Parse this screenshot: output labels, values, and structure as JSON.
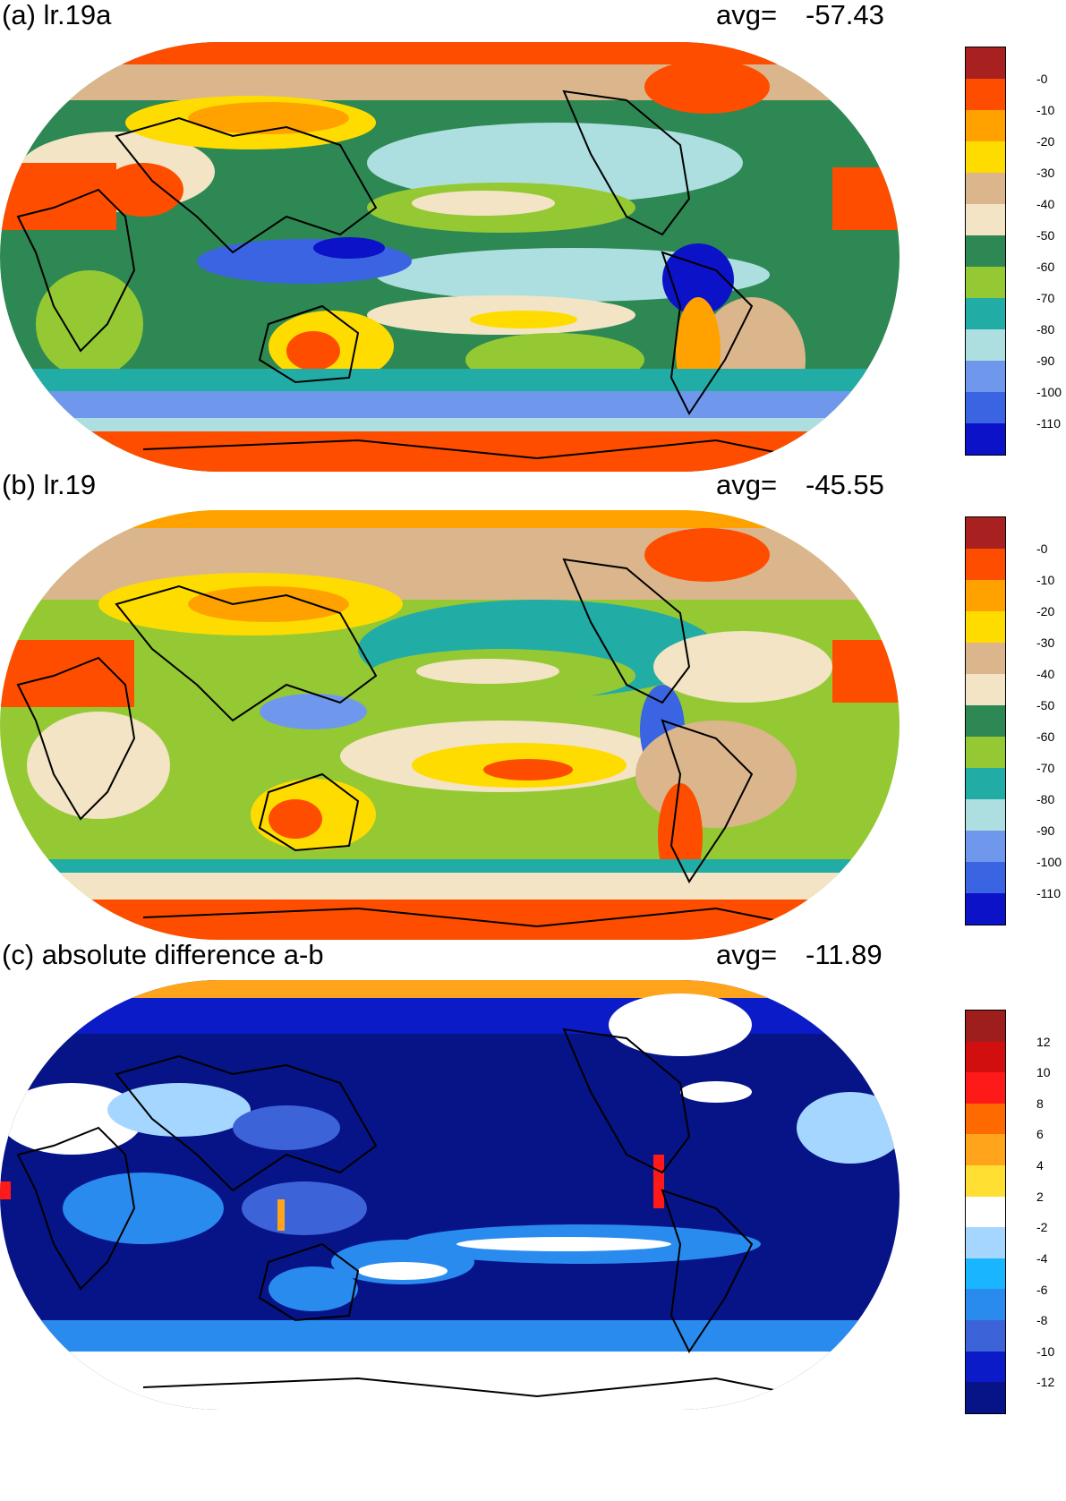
{
  "panels": [
    {
      "label": "(a) lr.19a",
      "avg_label": "avg=",
      "avg_value": "-57.43",
      "colorbar": {
        "colors": [
          "#a8201f",
          "#ff4d00",
          "#ffa200",
          "#ffdc00",
          "#dbb68c",
          "#f2e4c4",
          "#2e8853",
          "#95c933",
          "#21ada5",
          "#addfe0",
          "#6f98ec",
          "#3a64e2",
          "#0b12c8"
        ],
        "labels": [
          "-0",
          "-10",
          "-20",
          "-30",
          "-40",
          "-50",
          "-60",
          "-70",
          "-80",
          "-90",
          "-100",
          "-110"
        ]
      }
    },
    {
      "label": "(b) lr.19",
      "avg_label": "avg=",
      "avg_value": "-45.55",
      "colorbar": {
        "colors": [
          "#a8201f",
          "#ff4d00",
          "#ffa200",
          "#ffdc00",
          "#dbb68c",
          "#f2e4c4",
          "#2e8853",
          "#95c933",
          "#21ada5",
          "#addfe0",
          "#6f98ec",
          "#3a64e2",
          "#0b12c8"
        ],
        "labels": [
          "-0",
          "-10",
          "-20",
          "-30",
          "-40",
          "-50",
          "-60",
          "-70",
          "-80",
          "-90",
          "-100",
          "-110"
        ]
      }
    },
    {
      "label": "(c) absolute difference a-b",
      "avg_label": "avg=",
      "avg_value": "-11.89",
      "colorbar": {
        "colors": [
          "#9e1d1d",
          "#d10f0f",
          "#ff1a1a",
          "#ff6a00",
          "#ffa41b",
          "#ffdf32",
          "#ffffff",
          "#a5d6ff",
          "#19b6ff",
          "#2a8bef",
          "#3d63d8",
          "#0b1bc8",
          "#061488"
        ],
        "labels": [
          "12",
          "10",
          "8",
          "6",
          "4",
          "2",
          "-2",
          "-4",
          "-6",
          "-8",
          "-10",
          "-12"
        ]
      }
    }
  ]
}
